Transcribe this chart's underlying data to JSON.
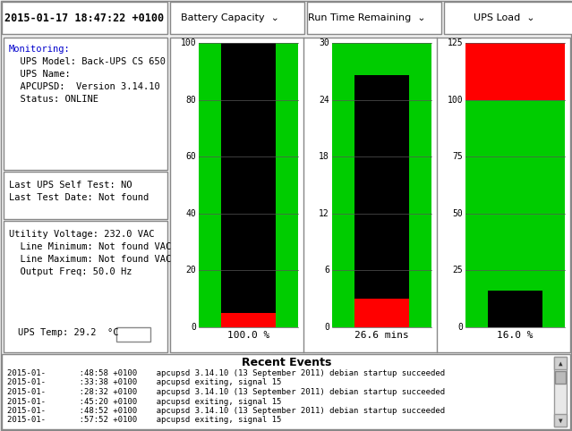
{
  "title_datetime": "2015-01-17 18:47:22 +0100",
  "bg_color": "#f0f0f0",
  "panel_bg": "#ffffff",
  "border_color": "#aaaaaa",
  "info_lines": [
    "Monitoring:",
    "  UPS Model: Back-UPS CS 650",
    "  UPS Name:",
    "  APCUPSD:  Version 3.14.10",
    "  Status: ONLINE"
  ],
  "test_lines": [
    "Last UPS Self Test: NO",
    "Last Test Date: Not found"
  ],
  "voltage_lines": [
    "Utility Voltage: 232.0 VAC",
    "  Line Minimum: Not found VAC",
    "  Line Maximum: Not found VAC",
    "  Output Freq: 50.0 Hz"
  ],
  "temp_line": "UPS Temp: 29.2  °C",
  "bar_labels": [
    "Battery Capacity",
    "Run Time Remaining",
    "UPS Load"
  ],
  "bar_values": [
    100.0,
    26.6,
    16.0
  ],
  "bar_maxes": [
    100,
    30,
    125
  ],
  "bar_ticks": [
    [
      0,
      20,
      40,
      60,
      80,
      100
    ],
    [
      0,
      6,
      12,
      18,
      24,
      30
    ],
    [
      0,
      25,
      50,
      75,
      100,
      125
    ]
  ],
  "bar_units": [
    "100.0 %",
    "26.6 mins",
    "16.0 %"
  ],
  "green": "#00cc00",
  "red": "#ff0000",
  "black": "#000000",
  "events_title": "Recent Events",
  "events": [
    "2015-01-       :48:58 +0100    apcupsd 3.14.10 (13 September 2011) debian startup succeeded",
    "2015-01-       :33:38 +0100    apcupsd exiting, signal 15",
    "2015-01-       :28:32 +0100    apcupsd 3.14.10 (13 September 2011) debian startup succeeded",
    "2015-01-       :45:20 +0100    apcupsd exiting, signal 15",
    "2015-01-       :48:52 +0100    apcupsd 3.14.10 (13 September 2011) debian startup succeeded",
    "2015-01-       :57:52 +0100    apcupsd exiting, signal 15"
  ]
}
